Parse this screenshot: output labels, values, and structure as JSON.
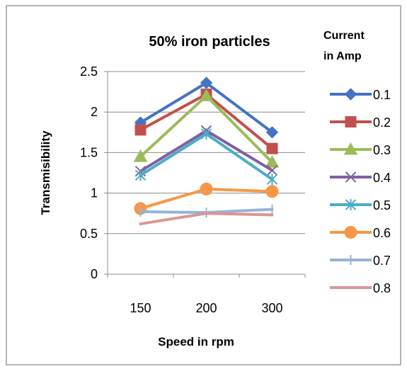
{
  "chart_data": {
    "type": "line",
    "title": "50% iron particles",
    "xlabel": "Speed in rpm",
    "ylabel": "Transmisibility",
    "categories": [
      "150",
      "200",
      "300"
    ],
    "ylim": [
      0,
      2.5
    ],
    "yticks": [
      "0",
      "0.5",
      "1",
      "1.5",
      "2",
      "2.5"
    ],
    "grid": "horizontal",
    "legend_title": [
      "Current",
      "in Amp"
    ],
    "legend_position": "right",
    "series": [
      {
        "name": "0.1",
        "values": [
          1.87,
          2.36,
          1.75
        ],
        "color": "#4472C4",
        "marker": "diamond"
      },
      {
        "name": "0.2",
        "values": [
          1.78,
          2.22,
          1.55
        ],
        "color": "#C0504D",
        "marker": "square"
      },
      {
        "name": "0.3",
        "values": [
          1.45,
          2.2,
          1.38
        ],
        "color": "#9BBB59",
        "marker": "triangle"
      },
      {
        "name": "0.4",
        "values": [
          1.27,
          1.77,
          1.28
        ],
        "color": "#7F60A0",
        "marker": "x"
      },
      {
        "name": "0.5",
        "values": [
          1.22,
          1.73,
          1.17
        ],
        "color": "#4BACC6",
        "marker": "star"
      },
      {
        "name": "0.6",
        "values": [
          0.81,
          1.05,
          1.02
        ],
        "color": "#F79646",
        "marker": "circle"
      },
      {
        "name": "0.7",
        "values": [
          0.77,
          0.76,
          0.8
        ],
        "color": "#95B3D7",
        "marker": "plus"
      },
      {
        "name": "0.8",
        "values": [
          0.62,
          0.75,
          0.73
        ],
        "color": "#D99694",
        "marker": "none"
      }
    ]
  }
}
